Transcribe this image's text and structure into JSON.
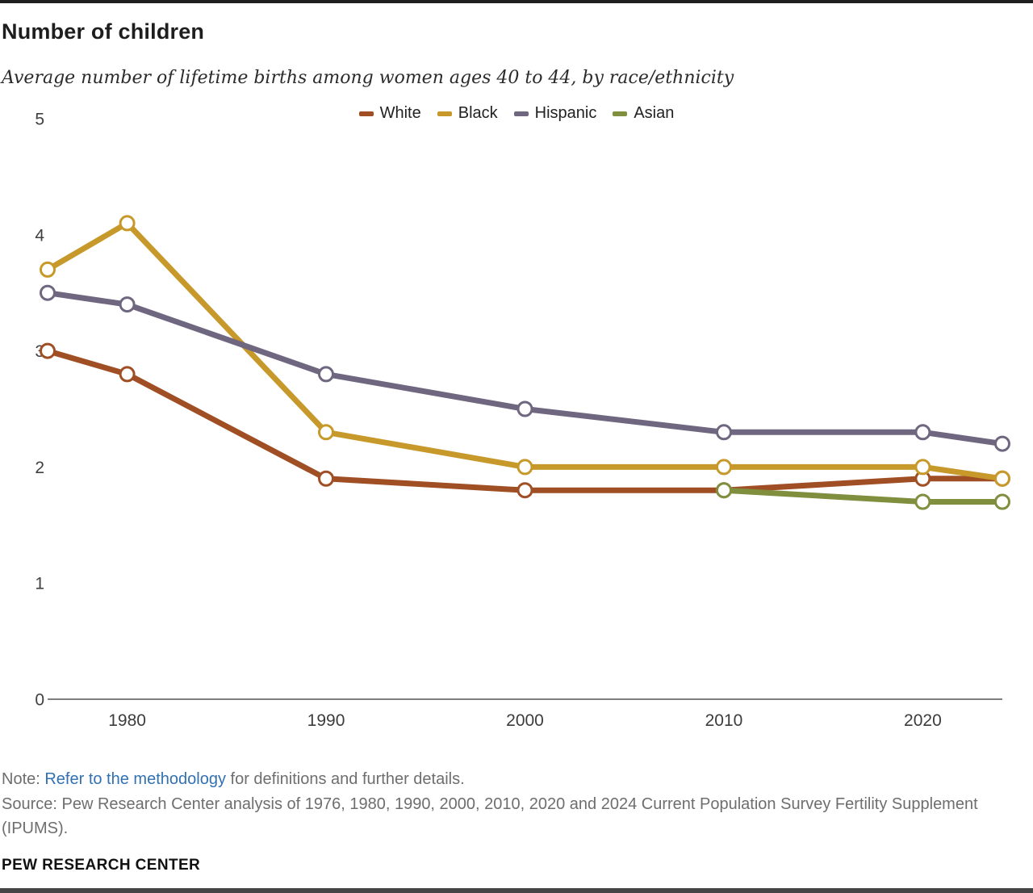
{
  "header": {
    "title": "Number of children",
    "subtitle": "Average number of lifetime births among women ages 40 to 44, by race/ethnicity"
  },
  "chart_data": {
    "type": "line",
    "x": [
      1976,
      1980,
      1990,
      2000,
      2010,
      2020,
      2024
    ],
    "series": [
      {
        "name": "White",
        "color": "#A04E23",
        "values": [
          3.0,
          2.8,
          1.9,
          1.8,
          1.8,
          1.9,
          1.9
        ]
      },
      {
        "name": "Black",
        "color": "#C7992B",
        "values": [
          3.7,
          4.1,
          2.3,
          2.0,
          2.0,
          2.0,
          1.9
        ]
      },
      {
        "name": "Hispanic",
        "color": "#6F6680",
        "values": [
          3.5,
          3.4,
          2.8,
          2.5,
          2.3,
          2.3,
          2.2
        ]
      },
      {
        "name": "Asian",
        "color": "#7F8F3E",
        "values": [
          null,
          null,
          null,
          null,
          1.8,
          1.7,
          1.7
        ]
      }
    ],
    "ylim": [
      0,
      5
    ],
    "yticks": [
      0,
      1,
      2,
      3,
      4,
      5
    ],
    "xticks": [
      1980,
      1990,
      2000,
      2010,
      2020
    ],
    "grid": false,
    "legend_position": "top-center",
    "marker": "open-circle",
    "axis_color": "#7f7f7f",
    "tick_label_color": "#404040"
  },
  "footer": {
    "note_label": "Note: ",
    "note_link": "Refer to the methodology",
    "note_rest": " for definitions and further details.",
    "source": "Source: Pew Research Center analysis of 1976, 1980, 1990, 2000, 2010, 2020 and 2024 Current Population Survey Fertility Supplement (IPUMS).",
    "brand": "PEW RESEARCH CENTER",
    "link_color": "#3171B2"
  }
}
